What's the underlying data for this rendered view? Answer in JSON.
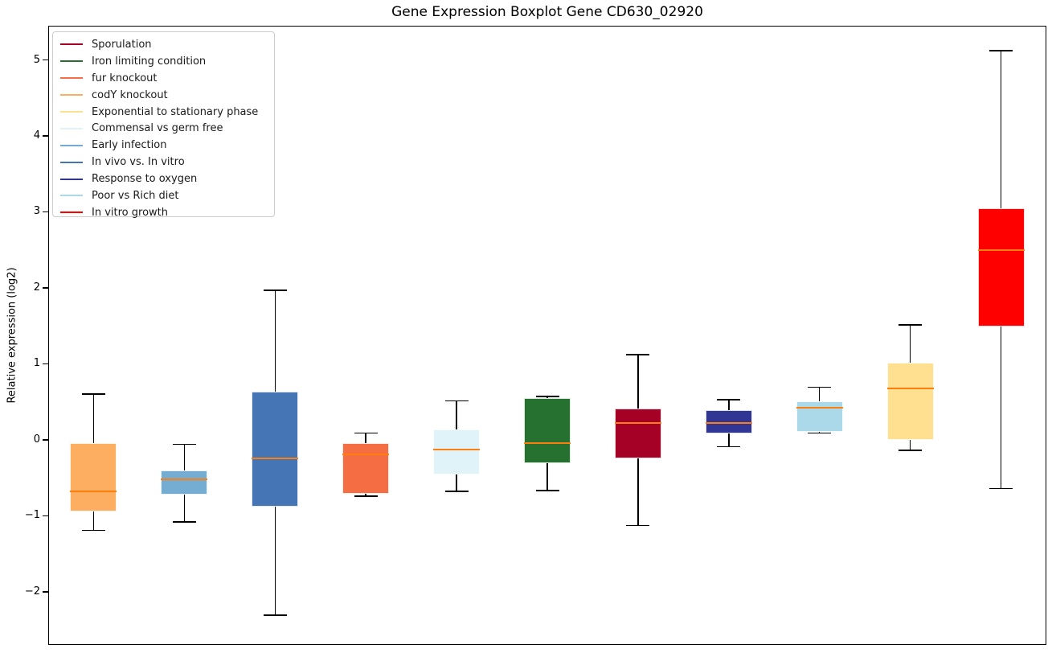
{
  "figure": {
    "title": "Gene Expression Boxplot Gene CD630_02920",
    "background_color": "#ffffff"
  },
  "axes": {
    "ylabel": "Relative expression (log2)",
    "ytick_labels": [
      "5",
      "4",
      "3",
      "2",
      "1",
      "0",
      "−1",
      "−2"
    ],
    "xtick_labels": []
  },
  "chart_data": {
    "type": "boxplot",
    "title": "Gene Expression Boxplot Gene CD630_02920",
    "xlabel": "",
    "ylabel": "Relative expression (log2)",
    "ylim": [
      -2.7,
      5.45
    ],
    "yticks": [
      5,
      4,
      3,
      2,
      1,
      0,
      -1,
      -2
    ],
    "grid": false,
    "median_color": "#ff7f0e",
    "whisker_color": "#000000",
    "legend": {
      "position": "upper left",
      "items": [
        {
          "label": "Sporulation",
          "color": "#a50026"
        },
        {
          "label": "Iron limiting condition",
          "color": "#267030"
        },
        {
          "label": "fur knockout",
          "color": "#f46d43"
        },
        {
          "label": "codY knockout",
          "color": "#fdae61"
        },
        {
          "label": "Exponential to stationary phase",
          "color": "#fee090"
        },
        {
          "label": "Commensal vs germ free",
          "color": "#e0f3f8"
        },
        {
          "label": "Early infection",
          "color": "#74add1"
        },
        {
          "label": "In vivo vs. In vitro",
          "color": "#4575b4"
        },
        {
          "label": "Response to oxygen",
          "color": "#313695"
        },
        {
          "label": "Poor vs Rich diet",
          "color": "#abd9e9"
        },
        {
          "label": "In vitro growth",
          "color": "#ff0000"
        }
      ]
    },
    "series": [
      {
        "name": "codY knockout",
        "color": "#fdae61",
        "whislo": -1.19,
        "q1": -0.94,
        "med": -0.68,
        "q3": -0.04,
        "whishi": 0.6
      },
      {
        "name": "Early infection",
        "color": "#74add1",
        "whislo": -1.08,
        "q1": -0.72,
        "med": -0.52,
        "q3": -0.4,
        "whishi": -0.06
      },
      {
        "name": "In vivo vs. In vitro",
        "color": "#4575b4",
        "whislo": -2.31,
        "q1": -0.88,
        "med": -0.24,
        "q3": 0.63,
        "whishi": 1.97
      },
      {
        "name": "fur knockout",
        "color": "#f46d43",
        "whislo": -0.74,
        "q1": -0.71,
        "med": -0.19,
        "q3": -0.04,
        "whishi": 0.09
      },
      {
        "name": "Commensal vs germ free",
        "color": "#e0f3f8",
        "whislo": -0.68,
        "q1": -0.46,
        "med": -0.13,
        "q3": 0.14,
        "whishi": 0.51
      },
      {
        "name": "Iron limiting condition",
        "color": "#267030",
        "whislo": -0.67,
        "q1": -0.31,
        "med": -0.04,
        "q3": 0.55,
        "whishi": 0.57
      },
      {
        "name": "Sporulation",
        "color": "#a50026",
        "whislo": -1.13,
        "q1": -0.24,
        "med": 0.22,
        "q3": 0.41,
        "whishi": 1.12
      },
      {
        "name": "Response to oxygen",
        "color": "#313695",
        "whislo": -0.09,
        "q1": 0.08,
        "med": 0.22,
        "q3": 0.39,
        "whishi": 0.53
      },
      {
        "name": "Poor vs Rich diet",
        "color": "#abd9e9",
        "whislo": 0.09,
        "q1": 0.1,
        "med": 0.42,
        "q3": 0.51,
        "whishi": 0.69
      },
      {
        "name": "Exponential to stationary phase",
        "color": "#fee090",
        "whislo": -0.14,
        "q1": 0.0,
        "med": 0.68,
        "q3": 1.01,
        "whishi": 1.51
      },
      {
        "name": "In vitro growth",
        "color": "#ff0000",
        "whislo": -0.64,
        "q1": 1.49,
        "med": 2.5,
        "q3": 3.05,
        "whishi": 5.12
      }
    ]
  }
}
